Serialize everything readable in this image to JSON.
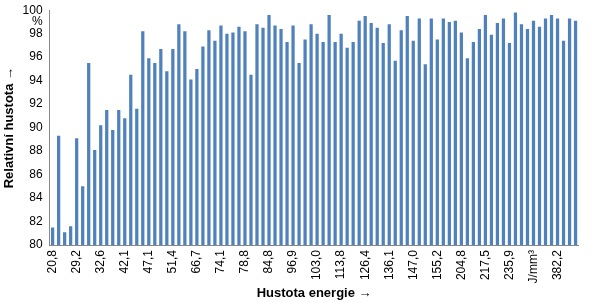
{
  "chart_data": {
    "type": "bar",
    "x_label": "Hustota energie →",
    "y_label": "Relativní hustota →",
    "categories": [
      "20,8",
      null,
      null,
      null,
      "29,2",
      null,
      null,
      null,
      "32,6",
      null,
      null,
      null,
      "42,1",
      null,
      null,
      null,
      "47,1",
      null,
      null,
      null,
      "51,4",
      null,
      null,
      null,
      "66,7",
      null,
      null,
      null,
      "74,1",
      null,
      null,
      null,
      "78,8",
      null,
      null,
      null,
      "84,8",
      null,
      null,
      null,
      "96,9",
      null,
      null,
      null,
      "103,0",
      null,
      null,
      null,
      "113,8",
      null,
      null,
      null,
      "126,4",
      null,
      null,
      null,
      "136,1",
      null,
      null,
      null,
      "147,0",
      null,
      null,
      null,
      "155,2",
      null,
      null,
      null,
      "204,8",
      null,
      null,
      null,
      "217,5",
      null,
      null,
      null,
      "235,9",
      null,
      null,
      null,
      "J/mm³",
      null,
      null,
      null,
      "382,2",
      null,
      null,
      null
    ],
    "values": [
      81.5,
      89.3,
      81.1,
      81.6,
      89.1,
      85.0,
      95.5,
      88.1,
      90.2,
      91.5,
      89.8,
      91.5,
      90.8,
      94.5,
      91.6,
      98.2,
      95.9,
      95.5,
      96.7,
      94.8,
      96.7,
      98.8,
      98.2,
      94.1,
      95.0,
      96.9,
      98.3,
      97.4,
      98.7,
      98.0,
      98.1,
      98.6,
      98.2,
      94.5,
      98.8,
      98.5,
      99.6,
      98.7,
      98.4,
      97.3,
      98.7,
      95.5,
      97.5,
      98.8,
      98.0,
      97.3,
      99.6,
      97.3,
      98.0,
      96.8,
      97.3,
      99.1,
      99.5,
      98.9,
      98.5,
      97.2,
      98.8,
      95.7,
      98.3,
      99.5,
      97.4,
      99.3,
      95.4,
      99.3,
      97.5,
      99.3,
      99.0,
      99.1,
      98.1,
      95.9,
      97.3,
      98.4,
      99.6,
      97.9,
      98.9,
      99.3,
      97.2,
      99.8,
      98.8,
      98.4,
      99.1,
      98.6,
      99.3,
      99.6,
      99.3,
      97.4,
      99.3,
      99.1
    ],
    "color": "#4f81bd",
    "ylim": [
      80,
      100
    ],
    "yticks": [
      80,
      82,
      84,
      86,
      88,
      90,
      92,
      94,
      96,
      98,
      {
        "value": 99,
        "label": "%"
      },
      100
    ],
    "grid": false
  }
}
